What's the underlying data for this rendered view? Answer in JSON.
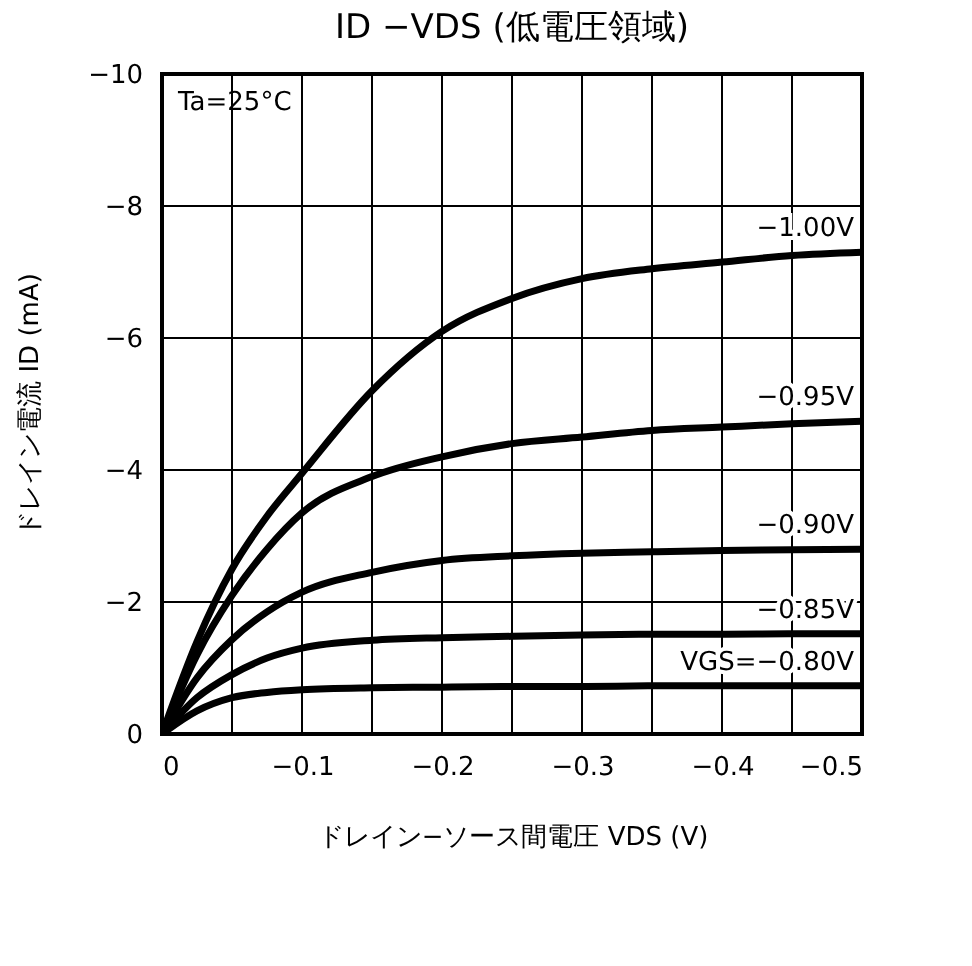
{
  "chart_data": {
    "type": "line",
    "title": "ID −VDS (低電圧領域)",
    "xlabel": "ドレイン−ソース間電圧 VDS (V)",
    "ylabel": "ドレイン電流 ID (mA)",
    "xlim": [
      0,
      -0.5
    ],
    "ylim": [
      0,
      -10
    ],
    "xticks": [
      {
        "value": 0,
        "label": "0"
      },
      {
        "value": -0.05,
        "label": null
      },
      {
        "value": -0.1,
        "label": "−0.1"
      },
      {
        "value": -0.15,
        "label": null
      },
      {
        "value": -0.2,
        "label": "−0.2"
      },
      {
        "value": -0.25,
        "label": null
      },
      {
        "value": -0.3,
        "label": "−0.3"
      },
      {
        "value": -0.35,
        "label": null
      },
      {
        "value": -0.4,
        "label": "−0.4"
      },
      {
        "value": -0.45,
        "label": null
      },
      {
        "value": -0.5,
        "label": "−0.5"
      }
    ],
    "yticks": [
      {
        "value": 0,
        "label": "0"
      },
      {
        "value": -2,
        "label": "−2"
      },
      {
        "value": -4,
        "label": "−4"
      },
      {
        "value": -6,
        "label": "−6"
      },
      {
        "value": -8,
        "label": "−8"
      },
      {
        "value": -10,
        "label": "−10"
      }
    ],
    "grid": true,
    "marker": "none",
    "line_style": "solid",
    "series": [
      {
        "name": "−1.00V",
        "color": "#000000",
        "x": [
          0,
          -0.025,
          -0.05,
          -0.075,
          -0.1,
          -0.15,
          -0.2,
          -0.25,
          -0.3,
          -0.35,
          -0.4,
          -0.45,
          -0.5
        ],
        "values": [
          0,
          -1.4,
          -2.5,
          -3.3,
          -3.95,
          -5.2,
          -6.1,
          -6.6,
          -6.9,
          -7.05,
          -7.15,
          -7.25,
          -7.3
        ]
      },
      {
        "name": "−0.95V",
        "color": "#000000",
        "x": [
          0,
          -0.025,
          -0.05,
          -0.075,
          -0.1,
          -0.15,
          -0.2,
          -0.25,
          -0.3,
          -0.35,
          -0.4,
          -0.45,
          -0.5
        ],
        "values": [
          0,
          -1.2,
          -2.1,
          -2.8,
          -3.35,
          -3.9,
          -4.2,
          -4.4,
          -4.5,
          -4.6,
          -4.65,
          -4.7,
          -4.74
        ]
      },
      {
        "name": "−0.90V",
        "color": "#000000",
        "x": [
          0,
          -0.025,
          -0.05,
          -0.075,
          -0.1,
          -0.15,
          -0.2,
          -0.25,
          -0.3,
          -0.35,
          -0.4,
          -0.45,
          -0.5
        ],
        "values": [
          0,
          -0.85,
          -1.43,
          -1.85,
          -2.15,
          -2.45,
          -2.63,
          -2.7,
          -2.74,
          -2.76,
          -2.78,
          -2.79,
          -2.8
        ]
      },
      {
        "name": "−0.85V",
        "color": "#000000",
        "x": [
          0,
          -0.025,
          -0.05,
          -0.075,
          -0.1,
          -0.15,
          -0.2,
          -0.25,
          -0.3,
          -0.35,
          -0.4,
          -0.45,
          -0.5
        ],
        "values": [
          0,
          -0.55,
          -0.9,
          -1.15,
          -1.3,
          -1.42,
          -1.46,
          -1.48,
          -1.5,
          -1.51,
          -1.51,
          -1.52,
          -1.52
        ]
      },
      {
        "name": "VGS=−0.80V",
        "color": "#000000",
        "x": [
          0,
          -0.025,
          -0.05,
          -0.075,
          -0.1,
          -0.15,
          -0.2,
          -0.25,
          -0.3,
          -0.35,
          -0.4,
          -0.45,
          -0.5
        ],
        "values": [
          0,
          -0.35,
          -0.55,
          -0.63,
          -0.67,
          -0.7,
          -0.71,
          -0.72,
          -0.72,
          -0.73,
          -0.73,
          -0.73,
          -0.73
        ]
      }
    ],
    "annotations": [
      "Ta=25°C"
    ]
  }
}
